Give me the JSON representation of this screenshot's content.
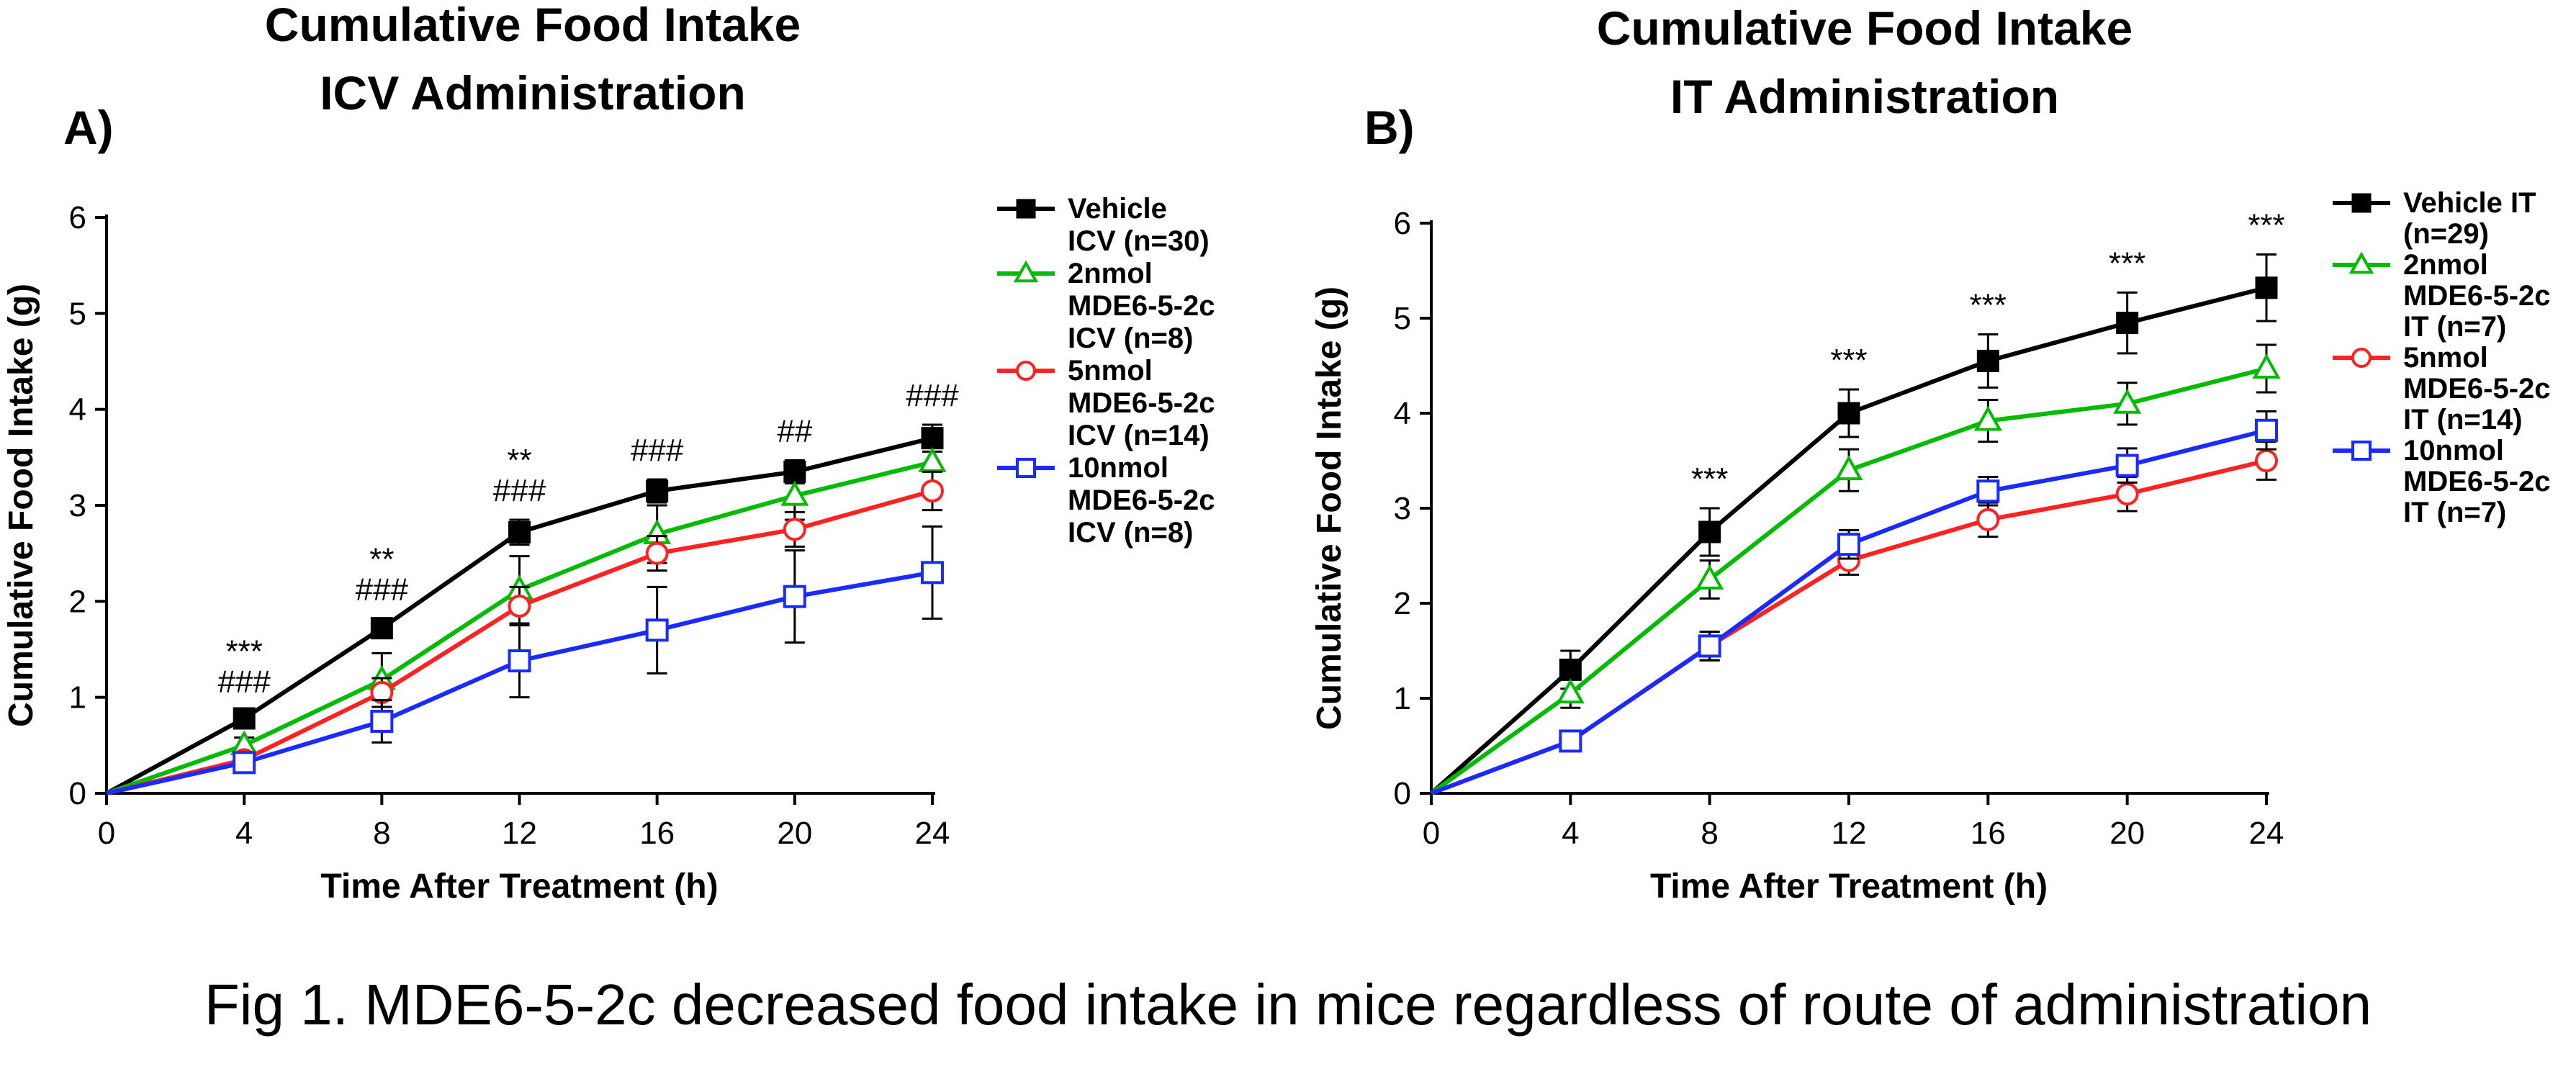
{
  "caption": "Fig 1. MDE6-5-2c decreased food intake in mice regardless of route of administration",
  "chart_data": [
    {
      "type": "line",
      "panel_label": "A)",
      "title": [
        "Cumulative Food Intake",
        "ICV Administration"
      ],
      "xlabel": "Time After Treatment (h)",
      "ylabel": "Cumulative Food Intake (g)",
      "x": [
        0,
        4,
        8,
        12,
        16,
        20,
        24
      ],
      "xticks": [
        "0",
        "4",
        "8",
        "12",
        "16",
        "20",
        "24"
      ],
      "yticks": [
        "0",
        "1",
        "2",
        "3",
        "4",
        "5",
        "6"
      ],
      "xlim": [
        0,
        24
      ],
      "ylim": [
        0,
        6
      ],
      "legend_position": "right",
      "series": [
        {
          "name": "Vehicle ICV (n=30)",
          "legend_lines": [
            "Vehicle",
            "ICV (n=30)"
          ],
          "color": "#000000",
          "marker": "filled-square",
          "values": [
            0,
            0.78,
            1.72,
            2.72,
            3.15,
            3.35,
            3.7
          ],
          "errors": [
            0,
            0.08,
            0.1,
            0.13,
            0.12,
            0.12,
            0.14
          ]
        },
        {
          "name": "2nmol MDE6-5-2c ICV (n=8)",
          "legend_lines": [
            "2nmol",
            "MDE6-5-2c",
            "ICV (n=8)"
          ],
          "color": "#00bb00",
          "marker": "open-triangle",
          "values": [
            0,
            0.5,
            1.18,
            2.12,
            2.7,
            3.1,
            3.45
          ],
          "errors": [
            0,
            0.08,
            0.28,
            0.35,
            0.3,
            0.25,
            0.25
          ]
        },
        {
          "name": "5nmol MDE6-5-2c ICV (n=14)",
          "legend_lines": [
            "5nmol",
            "MDE6-5-2c",
            "ICV (n=14)"
          ],
          "color": "#ff2222",
          "marker": "open-circle",
          "values": [
            0,
            0.35,
            1.05,
            1.95,
            2.5,
            2.75,
            3.15
          ],
          "errors": [
            0,
            0.06,
            0.15,
            0.2,
            0.18,
            0.18,
            0.2
          ]
        },
        {
          "name": "10nmol MDE6-5-2c ICV (n=8)",
          "legend_lines": [
            "10nmol",
            "MDE6-5-2c",
            "ICV (n=8)"
          ],
          "color": "#1a2bff",
          "marker": "open-square",
          "values": [
            0,
            0.32,
            0.75,
            1.38,
            1.7,
            2.05,
            2.3
          ],
          "errors": [
            0,
            0.08,
            0.22,
            0.38,
            0.45,
            0.48,
            0.48
          ]
        }
      ],
      "annotations": [
        {
          "x": 4,
          "lines": [
            "***",
            "###"
          ]
        },
        {
          "x": 8,
          "lines": [
            "**",
            "###"
          ]
        },
        {
          "x": 12,
          "lines": [
            "**",
            "###"
          ]
        },
        {
          "x": 16,
          "lines": [
            "###"
          ]
        },
        {
          "x": 20,
          "lines": [
            "##"
          ]
        },
        {
          "x": 24,
          "lines": [
            "###"
          ]
        }
      ]
    },
    {
      "type": "line",
      "panel_label": "B)",
      "title": [
        "Cumulative Food Intake",
        "IT Administration"
      ],
      "xlabel": "Time After Treatment (h)",
      "ylabel": "Cumulative Food Intake (g)",
      "x": [
        0,
        4,
        8,
        12,
        16,
        20,
        24
      ],
      "xticks": [
        "0",
        "4",
        "8",
        "12",
        "16",
        "20",
        "24"
      ],
      "yticks": [
        "0",
        "1",
        "2",
        "3",
        "4",
        "5",
        "6"
      ],
      "xlim": [
        0,
        24
      ],
      "ylim": [
        0,
        6
      ],
      "legend_position": "right",
      "series": [
        {
          "name": "Vehicle IT (n=29)",
          "legend_lines": [
            "Vehicle IT",
            "(n=29)"
          ],
          "color": "#000000",
          "marker": "filled-square",
          "values": [
            0,
            1.3,
            2.75,
            4.0,
            4.55,
            4.95,
            5.32
          ],
          "errors": [
            0,
            0.2,
            0.25,
            0.25,
            0.28,
            0.32,
            0.35
          ]
        },
        {
          "name": "2nmol MDE6-5-2c IT (n=7)",
          "legend_lines": [
            "2nmol",
            "MDE6-5-2c",
            "IT (n=7)"
          ],
          "color": "#00bb00",
          "marker": "open-triangle",
          "values": [
            0,
            1.05,
            2.25,
            3.4,
            3.92,
            4.1,
            4.47
          ],
          "errors": [
            0,
            0.15,
            0.2,
            0.22,
            0.22,
            0.22,
            0.25
          ]
        },
        {
          "name": "5nmol MDE6-5-2c IT (n=14)",
          "legend_lines": [
            "5nmol",
            "MDE6-5-2c",
            "IT (n=14)"
          ],
          "color": "#ff2222",
          "marker": "open-circle",
          "values": [
            0,
            0.55,
            1.55,
            2.45,
            2.88,
            3.15,
            3.5
          ],
          "errors": [
            0,
            0.08,
            0.15,
            0.15,
            0.18,
            0.18,
            0.2
          ]
        },
        {
          "name": "10nmol MDE6-5-2c IT (n=7)",
          "legend_lines": [
            "10nmol",
            "MDE6-5-2c",
            "IT (n=7)"
          ],
          "color": "#1a2bff",
          "marker": "open-square",
          "values": [
            0,
            0.55,
            1.55,
            2.62,
            3.18,
            3.45,
            3.82
          ],
          "errors": [
            0,
            0.08,
            0.15,
            0.15,
            0.15,
            0.18,
            0.2
          ]
        }
      ],
      "annotations": [
        {
          "x": 8,
          "lines": [
            "***"
          ]
        },
        {
          "x": 12,
          "lines": [
            "***"
          ]
        },
        {
          "x": 16,
          "lines": [
            "***"
          ]
        },
        {
          "x": 20,
          "lines": [
            "***"
          ]
        },
        {
          "x": 24,
          "lines": [
            "***"
          ]
        }
      ]
    }
  ]
}
